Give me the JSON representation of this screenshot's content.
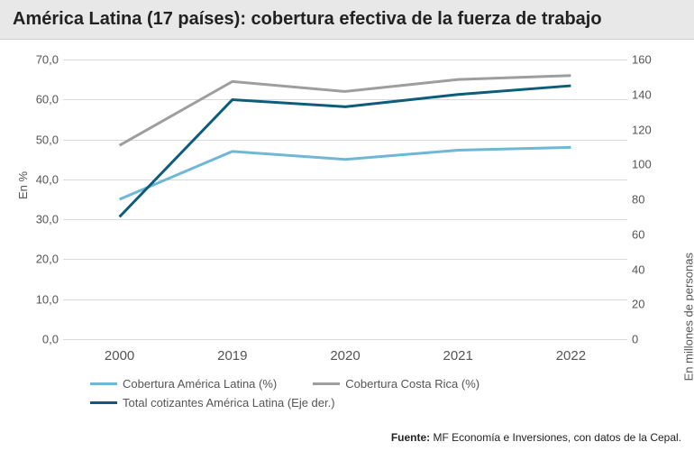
{
  "title": "América Latina (17 países): cobertura efectiva de la fuerza de trabajo",
  "chart": {
    "type": "line",
    "categories": [
      "2000",
      "2019",
      "2020",
      "2021",
      "2022"
    ],
    "left_axis": {
      "label": "En %",
      "min": 0.0,
      "max": 70.0,
      "step": 10.0,
      "ticks": [
        "0,0",
        "10,0",
        "20,0",
        "30,0",
        "40,0",
        "50,0",
        "60,0",
        "70,0"
      ]
    },
    "right_axis": {
      "label": "En millones de personas",
      "min": 0,
      "max": 160,
      "step": 20,
      "ticks": [
        "0",
        "20",
        "40",
        "60",
        "80",
        "100",
        "120",
        "140",
        "160"
      ]
    },
    "series": [
      {
        "name": "Cobertura América Latina (%)",
        "color": "#6fb7d6",
        "axis": "left",
        "values": [
          35.0,
          47.0,
          45.0,
          47.3,
          48.0
        ],
        "line_width": 3
      },
      {
        "name": "Cobertura Costa Rica (%)",
        "color": "#9e9e9e",
        "axis": "left",
        "values": [
          48.5,
          64.5,
          62.0,
          65.0,
          66.0
        ],
        "line_width": 3
      },
      {
        "name": "Total cotizantes América Latina (Eje der.)",
        "color": "#0d5d7a",
        "axis": "right",
        "values": [
          70,
          137,
          133,
          140,
          145
        ],
        "line_width": 3
      }
    ],
    "background_color": "#ffffff",
    "grid_color": "#d9d9d9",
    "title_bg": "#e8e8e8",
    "label_fontsize": 13,
    "tick_fontsize": 13,
    "title_fontsize": 20
  },
  "source": {
    "label": "Fuente:",
    "text": " MF Economía e Inversiones, con datos de la Cepal."
  }
}
